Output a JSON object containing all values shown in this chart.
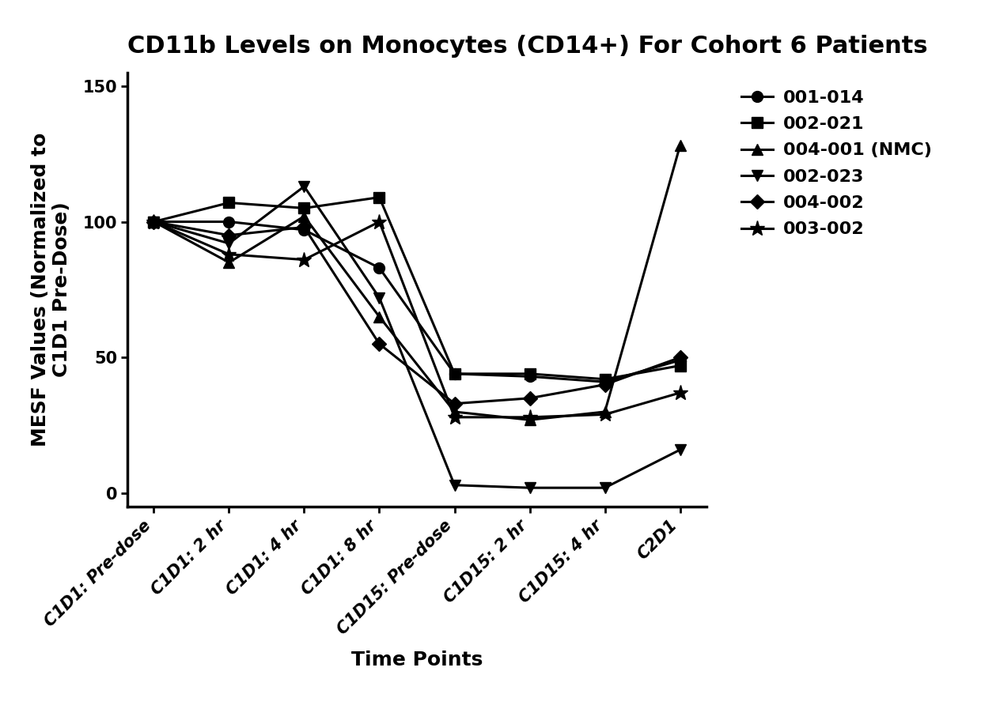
{
  "title": "CD11b Levels on Monocytes (CD14+) For Cohort 6 Patients",
  "xlabel": "Time Points",
  "ylabel": "MESF Values (Normalized to\nC1D1 Pre-Dose)",
  "x_labels": [
    "C1D1: Pre-dose",
    "C1D1: 2 hr",
    "C1D1: 4 hr",
    "C1D1: 8 hr",
    "C1D15: Pre-dose",
    "C1D15: 2 hr",
    "C1D15: 4 hr",
    "C2D1"
  ],
  "ylim": [
    -5,
    155
  ],
  "yticks": [
    0,
    50,
    100,
    150
  ],
  "series": [
    {
      "label": "001-014",
      "marker": "o",
      "values": [
        100,
        100,
        97,
        83,
        44,
        43,
        41,
        49
      ],
      "color": "#000000",
      "markersize": 10,
      "linewidth": 2.2
    },
    {
      "label": "002-021",
      "marker": "s",
      "values": [
        100,
        107,
        105,
        109,
        44,
        44,
        42,
        47
      ],
      "color": "#000000",
      "markersize": 10,
      "linewidth": 2.2
    },
    {
      "label": "004-001 (NMC)",
      "marker": "^",
      "values": [
        100,
        85,
        102,
        65,
        30,
        27,
        30,
        128
      ],
      "color": "#000000",
      "markersize": 10,
      "linewidth": 2.2
    },
    {
      "label": "002-023",
      "marker": "v",
      "values": [
        100,
        92,
        113,
        72,
        3,
        2,
        2,
        16
      ],
      "color": "#000000",
      "markersize": 10,
      "linewidth": 2.2
    },
    {
      "label": "004-002",
      "marker": "D",
      "values": [
        100,
        95,
        98,
        55,
        33,
        35,
        40,
        50
      ],
      "color": "#000000",
      "markersize": 9,
      "linewidth": 2.2
    },
    {
      "label": "003-002",
      "marker": "*",
      "values": [
        100,
        88,
        86,
        100,
        28,
        28,
        29,
        37
      ],
      "color": "#000000",
      "markersize": 14,
      "linewidth": 2.2
    }
  ],
  "background_color": "#ffffff",
  "title_fontsize": 22,
  "label_fontsize": 18,
  "tick_fontsize": 15,
  "legend_fontsize": 16
}
